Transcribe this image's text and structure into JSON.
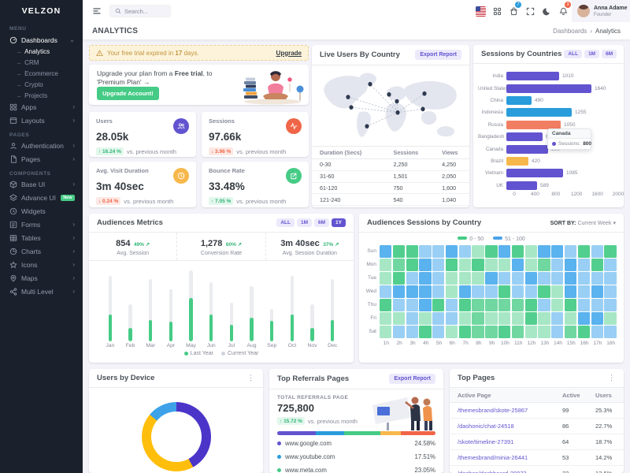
{
  "brand": "VELZON",
  "sidebar": {
    "sections": [
      {
        "type": "label",
        "text": "MENU"
      },
      {
        "type": "item",
        "icon": "dashboards-icon",
        "label": "Dashboards",
        "chevron": "down",
        "active": true
      },
      {
        "type": "sub",
        "label": "Analytics",
        "active": true
      },
      {
        "type": "sub",
        "label": "CRM"
      },
      {
        "type": "sub",
        "label": "Ecommerce"
      },
      {
        "type": "sub",
        "label": "Crypto"
      },
      {
        "type": "sub",
        "label": "Projects"
      },
      {
        "type": "item",
        "icon": "apps-icon",
        "label": "Apps",
        "chevron": "right"
      },
      {
        "type": "item",
        "icon": "layouts-icon",
        "label": "Layouts",
        "chevron": "right"
      },
      {
        "type": "label",
        "text": "PAGES"
      },
      {
        "type": "item",
        "icon": "authentication-icon",
        "label": "Authentication",
        "chevron": "right"
      },
      {
        "type": "item",
        "icon": "pages-icon",
        "label": "Pages",
        "chevron": "right"
      },
      {
        "type": "label",
        "text": "COMPONENTS"
      },
      {
        "type": "item",
        "icon": "base-ui-icon",
        "label": "Base UI",
        "chevron": "right"
      },
      {
        "type": "item",
        "icon": "advance-ui-icon",
        "label": "Advance UI",
        "badge": "New"
      },
      {
        "type": "item",
        "icon": "widgets-icon",
        "label": "Widgets"
      },
      {
        "type": "item",
        "icon": "forms-icon",
        "label": "Forms",
        "chevron": "right"
      },
      {
        "type": "item",
        "icon": "tables-icon",
        "label": "Tables",
        "chevron": "right"
      },
      {
        "type": "item",
        "icon": "charts-icon",
        "label": "Charts",
        "chevron": "right"
      },
      {
        "type": "item",
        "icon": "icons-icon",
        "label": "Icons",
        "chevron": "right"
      },
      {
        "type": "item",
        "icon": "maps-icon",
        "label": "Maps",
        "chevron": "right"
      },
      {
        "type": "item",
        "icon": "multi-level-icon",
        "label": "Multi Level",
        "chevron": "right"
      }
    ]
  },
  "header": {
    "search_placeholder": "Search...",
    "cart_badge": "7",
    "bell_badge": "3",
    "user_name": "Anna Adame",
    "user_role": "Founder"
  },
  "pagebar": {
    "title": "ANALYTICS",
    "breadcrumb_parent": "Dashboards",
    "breadcrumb_current": "Analytics"
  },
  "alert": {
    "prefix": "Your free trial expired in ",
    "bold": "17",
    "suffix": " days.",
    "link": "Upgrade"
  },
  "upgrade": {
    "text_pre": "Upgrade your plan from a ",
    "text_bold": "Free trial",
    "text_post": ", to 'Premium Plan' →",
    "button": "Upgrade Account!"
  },
  "stats": [
    {
      "label": "Users",
      "value": "28.05k",
      "delta": "16.24 %",
      "dir": "up",
      "note": "vs. previous month",
      "icon": "users-icon",
      "color": "#6254d0"
    },
    {
      "label": "Sessions",
      "value": "97.66k",
      "delta": "3.96 %",
      "dir": "down",
      "note": "vs. previous month",
      "icon": "activity-icon",
      "color": "#f06548"
    },
    {
      "label": "Avg. Visit Duration",
      "value": "3m 40sec",
      "delta": "0.24 %",
      "dir": "down",
      "note": "vs. previous month",
      "icon": "clock-icon",
      "color": "#f7b84b"
    },
    {
      "label": "Bounce Rate",
      "value": "33.48%",
      "delta": "7.05 %",
      "dir": "up",
      "note": "vs. previous month",
      "icon": "external-icon",
      "color": "#45cb85"
    }
  ],
  "live_users": {
    "title": "Live Users By Country",
    "button": "Export Report",
    "headers": [
      "Duration (Secs)",
      "Sessions",
      "Views"
    ],
    "rows": [
      [
        "0-30",
        "2,250",
        "4,250"
      ],
      [
        "31-60",
        "1,501",
        "2,050"
      ],
      [
        "61-120",
        "750",
        "1,600"
      ],
      [
        "121-240",
        "540",
        "1,040"
      ]
    ]
  },
  "sessions_by_countries": {
    "title": "Sessions by Countries",
    "buttons": [
      "ALL",
      "1M",
      "6M"
    ],
    "chart_data": {
      "type": "bar",
      "categories": [
        "India",
        "United States",
        "China",
        "Indonesia",
        "Russia",
        "Bangladesh",
        "Canada",
        "Brazil",
        "Vietnam",
        "UK"
      ],
      "values": [
        1010,
        1640,
        490,
        1255,
        1050,
        690,
        800,
        420,
        1085,
        589
      ],
      "colors": [
        "#6254d0",
        "#6254d0",
        "#299cdb",
        "#299cdb",
        "#f17e63",
        "#6254d0",
        "#6254d0",
        "#f7b84b",
        "#6254d0",
        "#6254d0"
      ],
      "xticks": [
        "0",
        "400",
        "800",
        "1200",
        "1600",
        "2000"
      ],
      "xmax": 2000
    },
    "tooltip": {
      "title": "Canada",
      "label": "Sessions:",
      "value": "800"
    }
  },
  "audiences_metrics": {
    "title": "Audiences Metrics",
    "buttons": [
      "ALL",
      "1M",
      "6M",
      "1Y"
    ],
    "active_button": "1Y",
    "stats": [
      {
        "value": "854",
        "pct": "49%",
        "label": "Avg. Session"
      },
      {
        "value": "1,278",
        "pct": "60%",
        "label": "Conversion Rate"
      },
      {
        "value": "3m 40sec",
        "pct": "37%",
        "label": "Avg. Session Duration"
      }
    ],
    "chart_data": {
      "type": "stacked-bar",
      "months": [
        "Jan",
        "Feb",
        "Mar",
        "Apr",
        "May",
        "Jun",
        "Jul",
        "Aug",
        "Sep",
        "Oct",
        "Nov",
        "Dec"
      ],
      "last_year": [
        25.3,
        12.5,
        20.2,
        18.5,
        40.4,
        25.4,
        15.8,
        22.3,
        19.2,
        25.3,
        12.5,
        20.2
      ],
      "current_year": [
        36.2,
        22.4,
        38.2,
        30.5,
        26.4,
        30.4,
        20.2,
        29.6,
        10.9,
        36.2,
        22.4,
        38.2
      ],
      "legend": [
        "Last Year",
        "Current Year"
      ],
      "colors": {
        "last_year": "#45cb85",
        "current_year": "#eaecef"
      }
    }
  },
  "audiences_sessions": {
    "title": "Audiences Sessions by Country",
    "sort_label": "SORT BY:",
    "sort_value": "Current Week",
    "legend": [
      {
        "label": "0 - 50",
        "color": "#45cb85"
      },
      {
        "label": "51 - 100",
        "color": "#4aa3e8"
      }
    ],
    "chart_data": {
      "type": "heatmap",
      "rows": [
        "Sun",
        "Mon",
        "Tue",
        "Wed",
        "Thu",
        "Fri",
        "Sat"
      ],
      "cols": [
        "1h",
        "2h",
        "3h",
        "4h",
        "5h",
        "6h",
        "7h",
        "8h",
        "9h",
        "10h",
        "11h",
        "12h",
        "13h",
        "14h",
        "15h",
        "16h",
        "17h",
        "18h"
      ],
      "values": [
        [
          90,
          45,
          45,
          65,
          65,
          90,
          65,
          15,
          45,
          90,
          45,
          15,
          90,
          90,
          65,
          45,
          65,
          45
        ],
        [
          15,
          35,
          45,
          90,
          65,
          45,
          15,
          45,
          15,
          15,
          90,
          15,
          35,
          65,
          90,
          65,
          45,
          65
        ],
        [
          15,
          45,
          65,
          90,
          65,
          15,
          15,
          15,
          90,
          65,
          65,
          90,
          65,
          65,
          90,
          65,
          65,
          65
        ],
        [
          65,
          90,
          90,
          90,
          65,
          15,
          90,
          65,
          65,
          45,
          65,
          65,
          45,
          15,
          90,
          65,
          90,
          65
        ],
        [
          45,
          65,
          65,
          90,
          45,
          65,
          45,
          35,
          35,
          35,
          35,
          45,
          65,
          15,
          45,
          65,
          65,
          65
        ],
        [
          15,
          15,
          65,
          15,
          65,
          65,
          15,
          35,
          15,
          15,
          15,
          45,
          15,
          65,
          15,
          90,
          90,
          15
        ],
        [
          15,
          65,
          65,
          45,
          65,
          15,
          45,
          35,
          35,
          45,
          35,
          15,
          15,
          65,
          35,
          45,
          65,
          65
        ]
      ]
    }
  },
  "users_by_device": {
    "title": "Users by Device",
    "chart_data": {
      "type": "donut",
      "slices": [
        {
          "pct": 42,
          "color": "#4b35c9"
        },
        {
          "pct": 44,
          "color": "#ffbe0b"
        },
        {
          "pct": 14,
          "color": "#3da2e8"
        }
      ]
    }
  },
  "top_referrals": {
    "title": "Top Referrals Pages",
    "button": "Export Report",
    "total_label": "TOTAL REFERRALS PAGE",
    "total": "725,800",
    "delta": "15.72 %",
    "note": "vs. previous month",
    "bar": [
      {
        "pct": 24.58,
        "color": "#6254d0"
      },
      {
        "pct": 17.51,
        "color": "#299cdb"
      },
      {
        "pct": 23.05,
        "color": "#45cb85"
      },
      {
        "pct": 12.98,
        "color": "#f7b84b"
      },
      {
        "pct": 21.88,
        "color": "#f06548"
      }
    ],
    "rows": [
      {
        "site": "www.google.com",
        "pct": "24.58%",
        "color": "#6254d0"
      },
      {
        "site": "www.youtube.com",
        "pct": "17.51%",
        "color": "#299cdb"
      },
      {
        "site": "www.meta.com",
        "pct": "23.05%",
        "color": "#45cb85"
      }
    ]
  },
  "top_pages": {
    "title": "Top Pages",
    "headers": [
      "Active Page",
      "Active",
      "Users"
    ],
    "rows": [
      [
        "/themesbrand/skote-25867",
        "99",
        "25.3%"
      ],
      [
        "/dashonic/chat-24518",
        "86",
        "22.7%"
      ],
      [
        "/skote/timeline-27391",
        "64",
        "18.7%"
      ],
      [
        "/themesbrand/minia-26441",
        "53",
        "14.2%"
      ],
      [
        "/dashon/dashboard-29873",
        "33",
        "12.6%"
      ]
    ]
  }
}
